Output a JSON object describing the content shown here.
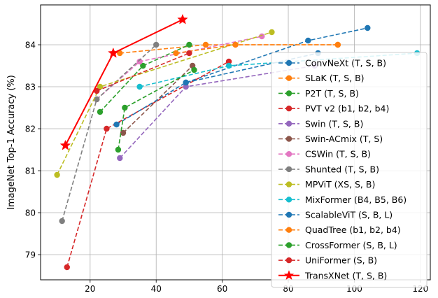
{
  "chart_data": {
    "type": "line",
    "title": "",
    "xlabel": "",
    "ylabel": "ImageNet Top-1 Accuracy (%)",
    "xlim": [
      5,
      123
    ],
    "ylim": [
      78.4,
      84.95
    ],
    "xticks": [
      20,
      40,
      60,
      80,
      100,
      120
    ],
    "yticks": [
      79,
      80,
      81,
      82,
      83,
      84
    ],
    "grid": true,
    "legend_position": "right",
    "series": [
      {
        "name": "ConvNeXt (T, S, B)",
        "color": "#1f77b4",
        "dash": true,
        "marker": "circle",
        "x": [
          49,
          86,
          104
        ],
        "y": [
          83.1,
          84.1,
          84.4
        ]
      },
      {
        "name": "SLaK (T, S, B)",
        "color": "#ff7f0e",
        "dash": true,
        "marker": "circle",
        "x": [
          29,
          55,
          95
        ],
        "y": [
          83.8,
          84.0,
          84.0
        ]
      },
      {
        "name": "P2T (T, S, B)",
        "color": "#2ca02c",
        "dash": true,
        "marker": "circle",
        "x": [
          23,
          36,
          50
        ],
        "y": [
          82.4,
          83.5,
          84.0
        ]
      },
      {
        "name": "PVT v2 (b1, b2, b4)",
        "color": "#d62728",
        "dash": true,
        "marker": "circle",
        "x": [
          13,
          25,
          62
        ],
        "y": [
          78.7,
          82.0,
          83.6
        ]
      },
      {
        "name": "Swin (T, S, B)",
        "color": "#9467bd",
        "dash": true,
        "marker": "circle",
        "x": [
          29,
          49,
          88
        ],
        "y": [
          81.3,
          83.0,
          83.5
        ]
      },
      {
        "name": "Swin-ACmix (T, S)",
        "color": "#8c564b",
        "dash": true,
        "marker": "circle",
        "x": [
          30,
          51
        ],
        "y": [
          81.9,
          83.5
        ]
      },
      {
        "name": "CSWin (T, S, B)",
        "color": "#e377c2",
        "dash": true,
        "marker": "circle",
        "x": [
          22,
          35,
          72
        ],
        "y": [
          82.7,
          83.6,
          84.2
        ]
      },
      {
        "name": "Shunted (T, S, B)",
        "color": "#7f7f7f",
        "dash": true,
        "marker": "circle",
        "x": [
          11.5,
          22,
          40
        ],
        "y": [
          79.8,
          82.7,
          84.0
        ]
      },
      {
        "name": "MPViT (XS, S, B)",
        "color": "#bcbd22",
        "dash": true,
        "marker": "circle",
        "x": [
          10,
          23,
          75
        ],
        "y": [
          80.9,
          83.0,
          84.3
        ]
      },
      {
        "name": "MixFormer (B4, B5, B6)",
        "color": "#17becf",
        "dash": true,
        "marker": "circle",
        "x": [
          35,
          62,
          119
        ],
        "y": [
          83.0,
          83.5,
          83.8
        ]
      },
      {
        "name": "ScalableViT (S, B, L)",
        "color": "#1f77b4",
        "dash": true,
        "marker": "circle",
        "x": [
          28,
          49,
          89
        ],
        "y": [
          82.1,
          83.1,
          83.8
        ]
      },
      {
        "name": "QuadTree (b1, b2, b4)",
        "color": "#ff7f0e",
        "dash": true,
        "marker": "circle",
        "x": [
          46,
          64,
          95
        ],
        "y": [
          83.8,
          84.0,
          84.0
        ]
      },
      {
        "name": "CrossFormer (S, B, L)",
        "color": "#2ca02c",
        "dash": true,
        "marker": "circle",
        "x": [
          28.5,
          30.5,
          51.5
        ],
        "y": [
          81.5,
          82.5,
          83.4
        ]
      },
      {
        "name": "UniFormer (S, B)",
        "color": "#d62728",
        "dash": true,
        "marker": "circle",
        "x": [
          22,
          50
        ],
        "y": [
          82.9,
          83.8
        ]
      },
      {
        "name": "TransXNet (T, S, B)",
        "color": "#ff0000",
        "dash": false,
        "marker": "star",
        "x": [
          12.5,
          27,
          48
        ],
        "y": [
          81.6,
          83.8,
          84.6
        ]
      }
    ]
  }
}
